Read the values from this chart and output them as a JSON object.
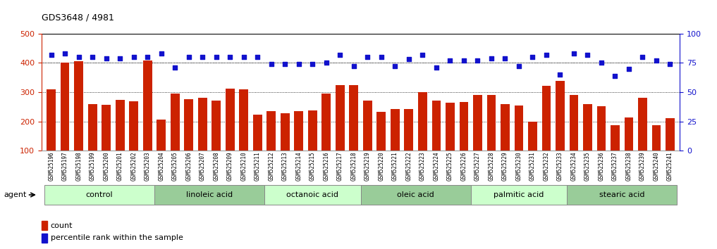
{
  "title": "GDS3648 / 4981",
  "samples": [
    "GSM525196",
    "GSM525197",
    "GSM525198",
    "GSM525199",
    "GSM525200",
    "GSM525201",
    "GSM525202",
    "GSM525203",
    "GSM525204",
    "GSM525205",
    "GSM525206",
    "GSM525207",
    "GSM525208",
    "GSM525209",
    "GSM525210",
    "GSM525211",
    "GSM525212",
    "GSM525213",
    "GSM525214",
    "GSM525215",
    "GSM525216",
    "GSM525217",
    "GSM525218",
    "GSM525219",
    "GSM525220",
    "GSM525221",
    "GSM525222",
    "GSM525223",
    "GSM525224",
    "GSM525225",
    "GSM525226",
    "GSM525227",
    "GSM525228",
    "GSM525229",
    "GSM525230",
    "GSM525231",
    "GSM525232",
    "GSM525233",
    "GSM525234",
    "GSM525235",
    "GSM525236",
    "GSM525237",
    "GSM525238",
    "GSM525239",
    "GSM525240",
    "GSM525241"
  ],
  "counts": [
    310,
    402,
    405,
    258,
    256,
    273,
    268,
    407,
    207,
    295,
    276,
    280,
    270,
    313,
    310,
    222,
    235,
    229,
    234,
    237,
    296,
    325,
    325,
    271,
    232,
    243,
    243,
    301,
    270,
    265,
    266,
    291,
    290,
    260,
    255,
    200,
    322,
    338,
    290,
    258,
    252,
    188,
    213,
    280,
    186,
    210
  ],
  "percentile_ranks": [
    82,
    83,
    80,
    80,
    79,
    79,
    80,
    80,
    83,
    71,
    80,
    80,
    80,
    80,
    80,
    80,
    74,
    74,
    74,
    74,
    75,
    82,
    72,
    80,
    80,
    72,
    78,
    82,
    71,
    77,
    77,
    77,
    79,
    79,
    72,
    80,
    82,
    65,
    83,
    82,
    75,
    64,
    70,
    80,
    77,
    74
  ],
  "bar_color": "#cc2200",
  "dot_color": "#1111cc",
  "groups": [
    {
      "label": "control",
      "start": 0,
      "end": 7
    },
    {
      "label": "linoleic acid",
      "start": 8,
      "end": 15
    },
    {
      "label": "octanoic acid",
      "start": 16,
      "end": 22
    },
    {
      "label": "oleic acid",
      "start": 23,
      "end": 30
    },
    {
      "label": "palmitic acid",
      "start": 31,
      "end": 37
    },
    {
      "label": "stearic acid",
      "start": 38,
      "end": 45
    }
  ],
  "alt_colors": [
    "#ccffcc",
    "#99cc99"
  ],
  "ylim_left": [
    100,
    500
  ],
  "ylim_right": [
    0,
    100
  ],
  "yticks_left": [
    100,
    200,
    300,
    400,
    500
  ],
  "yticks_right": [
    0,
    25,
    50,
    75,
    100
  ],
  "grid_values": [
    200,
    300,
    400
  ],
  "background_color": "#ffffff",
  "plot_bg": "#ffffff"
}
